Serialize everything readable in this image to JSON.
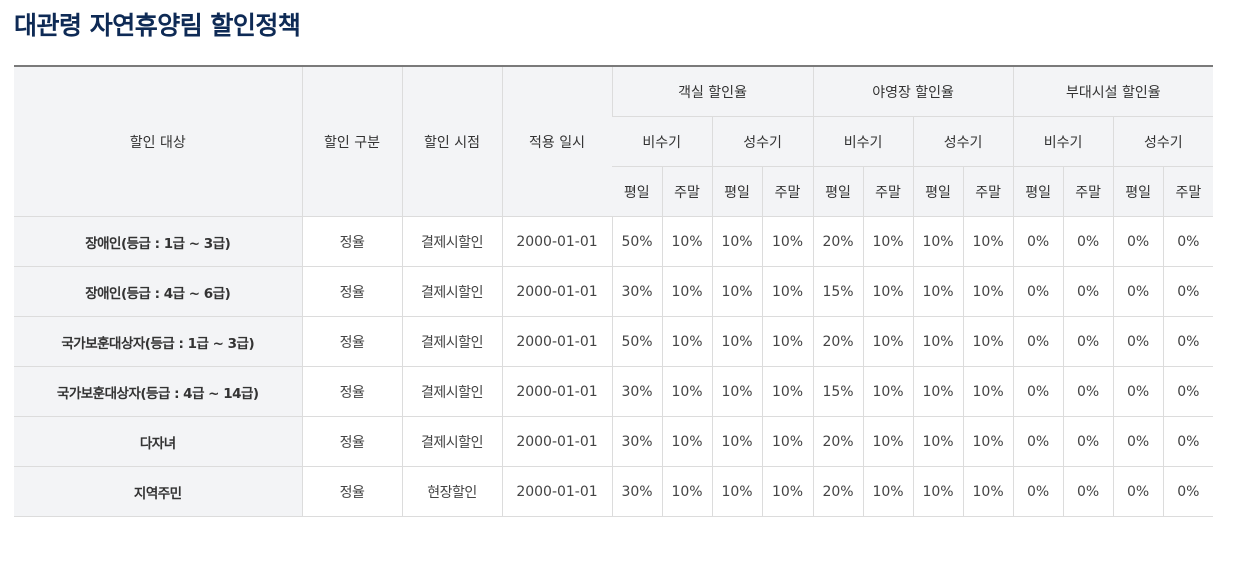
{
  "page": {
    "title": "대관령 자연휴양림 할인정책"
  },
  "table": {
    "headers": {
      "target": "할인 대상",
      "kind": "할인 구분",
      "time": "할인 시점",
      "date": "적용 일시",
      "groups": [
        "객실 할인율",
        "야영장 할인율",
        "부대시설 할인율"
      ],
      "seasons": [
        "비수기",
        "성수기",
        "비수기",
        "성수기",
        "비수기",
        "성수기"
      ],
      "days": [
        "평일",
        "주말",
        "평일",
        "주말",
        "평일",
        "주말",
        "평일",
        "주말",
        "평일",
        "주말",
        "평일",
        "주말"
      ]
    },
    "rows": [
      {
        "target": "장애인(등급 : 1급 ~ 3급)",
        "kind": "정율",
        "time": "결제시할인",
        "date": "2000-01-01",
        "rates": [
          "50%",
          "10%",
          "10%",
          "10%",
          "20%",
          "10%",
          "10%",
          "10%",
          "0%",
          "0%",
          "0%",
          "0%"
        ]
      },
      {
        "target": "장애인(등급 : 4급 ~ 6급)",
        "kind": "정율",
        "time": "결제시할인",
        "date": "2000-01-01",
        "rates": [
          "30%",
          "10%",
          "10%",
          "10%",
          "15%",
          "10%",
          "10%",
          "10%",
          "0%",
          "0%",
          "0%",
          "0%"
        ]
      },
      {
        "target": "국가보훈대상자(등급 : 1급 ~ 3급)",
        "kind": "정율",
        "time": "결제시할인",
        "date": "2000-01-01",
        "rates": [
          "50%",
          "10%",
          "10%",
          "10%",
          "20%",
          "10%",
          "10%",
          "10%",
          "0%",
          "0%",
          "0%",
          "0%"
        ]
      },
      {
        "target": "국가보훈대상자(등급 : 4급 ~ 14급)",
        "kind": "정율",
        "time": "결제시할인",
        "date": "2000-01-01",
        "rates": [
          "30%",
          "10%",
          "10%",
          "10%",
          "15%",
          "10%",
          "10%",
          "10%",
          "0%",
          "0%",
          "0%",
          "0%"
        ]
      },
      {
        "target": "다자녀",
        "kind": "정율",
        "time": "결제시할인",
        "date": "2000-01-01",
        "rates": [
          "30%",
          "10%",
          "10%",
          "10%",
          "20%",
          "10%",
          "10%",
          "10%",
          "0%",
          "0%",
          "0%",
          "0%"
        ]
      },
      {
        "target": "지역주민",
        "kind": "정율",
        "time": "현장할인",
        "date": "2000-01-01",
        "rates": [
          "30%",
          "10%",
          "10%",
          "10%",
          "20%",
          "10%",
          "10%",
          "10%",
          "0%",
          "0%",
          "0%",
          "0%"
        ]
      }
    ]
  }
}
